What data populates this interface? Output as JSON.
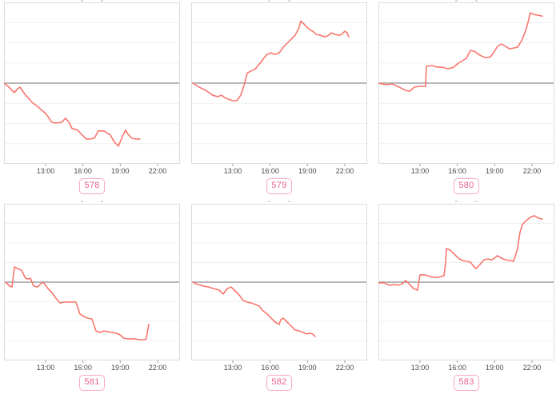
{
  "page": {
    "background": "#ffffff",
    "description_note": "grid of six small time-series line charts, each with a pink numbered tag below"
  },
  "style": {
    "line_color": "#f8766d",
    "zero_line_color": "#a2a2a2",
    "grid_color": "#f0f0f0",
    "border_color": "#dcdcdc",
    "tick_color": "#999999",
    "tick_label_color": "#4a4a4a",
    "badge_border_color": "#f7a9c3",
    "badge_text_color": "#e9618f"
  },
  "axis": {
    "x_domain_hours": [
      9.66,
      23.8
    ],
    "x_ticks": [
      {
        "hour": 13,
        "label": "13:00"
      },
      {
        "hour": 16,
        "label": "16:00"
      },
      {
        "hour": 19,
        "label": "19:00"
      },
      {
        "hour": 22,
        "label": "22:00"
      }
    ],
    "y_domain_units": [
      -4,
      4
    ],
    "y_gridline_step": 1,
    "y_zero_reference_line": true,
    "y_tick_labels_visible": false
  },
  "chart_data": [
    {
      "type": "line",
      "label": "578",
      "trend": "down",
      "points": [
        [
          9.66,
          0
        ],
        [
          9.98,
          -0.16
        ],
        [
          10.5,
          -0.47
        ],
        [
          10.75,
          -0.28
        ],
        [
          10.94,
          -0.2
        ],
        [
          11.39,
          -0.59
        ],
        [
          11.91,
          -0.95
        ],
        [
          12.42,
          -1.19
        ],
        [
          13.06,
          -1.54
        ],
        [
          13.51,
          -1.94
        ],
        [
          13.83,
          -1.98
        ],
        [
          14.28,
          -1.94
        ],
        [
          14.61,
          -1.74
        ],
        [
          14.93,
          -1.98
        ],
        [
          15.12,
          -2.25
        ],
        [
          15.57,
          -2.33
        ],
        [
          15.95,
          -2.57
        ],
        [
          16.28,
          -2.77
        ],
        [
          16.6,
          -2.77
        ],
        [
          16.92,
          -2.73
        ],
        [
          17.24,
          -2.37
        ],
        [
          17.69,
          -2.37
        ],
        [
          18.2,
          -2.57
        ],
        [
          18.52,
          -2.92
        ],
        [
          18.85,
          -3.12
        ],
        [
          19.17,
          -2.65
        ],
        [
          19.42,
          -2.33
        ],
        [
          19.62,
          -2.53
        ],
        [
          19.94,
          -2.73
        ],
        [
          20.26,
          -2.77
        ],
        [
          20.58,
          -2.77
        ]
      ]
    },
    {
      "type": "line",
      "label": "579",
      "trend": "up",
      "points": [
        [
          9.79,
          0
        ],
        [
          10.3,
          -0.2
        ],
        [
          10.94,
          -0.4
        ],
        [
          11.39,
          -0.6
        ],
        [
          11.78,
          -0.67
        ],
        [
          12.1,
          -0.6
        ],
        [
          12.42,
          -0.75
        ],
        [
          13.0,
          -0.87
        ],
        [
          13.32,
          -0.87
        ],
        [
          13.64,
          -0.6
        ],
        [
          13.96,
          0
        ],
        [
          14.16,
          0.5
        ],
        [
          14.48,
          0.6
        ],
        [
          14.8,
          0.7
        ],
        [
          15.25,
          1.03
        ],
        [
          15.57,
          1.3
        ],
        [
          15.76,
          1.42
        ],
        [
          16.08,
          1.5
        ],
        [
          16.4,
          1.42
        ],
        [
          16.73,
          1.5
        ],
        [
          17.05,
          1.78
        ],
        [
          17.37,
          1.98
        ],
        [
          17.69,
          2.17
        ],
        [
          18.01,
          2.37
        ],
        [
          18.33,
          2.77
        ],
        [
          18.46,
          3.08
        ],
        [
          18.78,
          2.89
        ],
        [
          19.1,
          2.69
        ],
        [
          19.42,
          2.57
        ],
        [
          19.74,
          2.41
        ],
        [
          20.07,
          2.37
        ],
        [
          20.39,
          2.29
        ],
        [
          20.71,
          2.37
        ],
        [
          20.9,
          2.49
        ],
        [
          21.22,
          2.41
        ],
        [
          21.54,
          2.37
        ],
        [
          21.74,
          2.41
        ],
        [
          22.0,
          2.57
        ],
        [
          22.19,
          2.49
        ],
        [
          22.31,
          2.29
        ]
      ]
    },
    {
      "type": "line",
      "label": "580",
      "trend": "up",
      "points": [
        [
          9.66,
          0
        ],
        [
          10.3,
          -0.08
        ],
        [
          10.75,
          -0.04
        ],
        [
          11.2,
          -0.16
        ],
        [
          11.84,
          -0.36
        ],
        [
          12.17,
          -0.4
        ],
        [
          12.55,
          -0.2
        ],
        [
          13.0,
          -0.16
        ],
        [
          13.45,
          -0.16
        ],
        [
          13.51,
          0.83
        ],
        [
          13.96,
          0.87
        ],
        [
          14.41,
          0.79
        ],
        [
          14.8,
          0.79
        ],
        [
          15.25,
          0.71
        ],
        [
          15.7,
          0.79
        ],
        [
          16.08,
          0.99
        ],
        [
          16.4,
          1.11
        ],
        [
          16.73,
          1.23
        ],
        [
          17.05,
          1.62
        ],
        [
          17.37,
          1.58
        ],
        [
          17.82,
          1.38
        ],
        [
          18.27,
          1.26
        ],
        [
          18.65,
          1.3
        ],
        [
          18.91,
          1.5
        ],
        [
          19.23,
          1.82
        ],
        [
          19.55,
          1.94
        ],
        [
          19.87,
          1.82
        ],
        [
          20.19,
          1.7
        ],
        [
          20.52,
          1.74
        ],
        [
          20.84,
          1.78
        ],
        [
          21.16,
          2.09
        ],
        [
          21.48,
          2.57
        ],
        [
          21.67,
          3.0
        ],
        [
          21.86,
          3.48
        ],
        [
          22.19,
          3.4
        ],
        [
          22.51,
          3.36
        ],
        [
          22.83,
          3.32
        ]
      ]
    },
    {
      "type": "line",
      "label": "581",
      "trend": "down",
      "points": [
        [
          9.79,
          0
        ],
        [
          10.11,
          -0.2
        ],
        [
          10.3,
          -0.25
        ],
        [
          10.5,
          0.78
        ],
        [
          10.75,
          0.69
        ],
        [
          11.07,
          0.61
        ],
        [
          11.39,
          0.2
        ],
        [
          11.58,
          0.16
        ],
        [
          11.78,
          0.2
        ],
        [
          12.04,
          -0.2
        ],
        [
          12.36,
          -0.25
        ],
        [
          12.68,
          -0.04
        ],
        [
          12.87,
          -0.04
        ],
        [
          13.19,
          -0.33
        ],
        [
          13.51,
          -0.53
        ],
        [
          13.83,
          -0.82
        ],
        [
          14.16,
          -1.06
        ],
        [
          14.48,
          -1.02
        ],
        [
          15.12,
          -1.02
        ],
        [
          15.44,
          -1.02
        ],
        [
          15.76,
          -1.63
        ],
        [
          16.08,
          -1.76
        ],
        [
          16.4,
          -1.84
        ],
        [
          16.73,
          -1.88
        ],
        [
          17.05,
          -2.49
        ],
        [
          17.37,
          -2.57
        ],
        [
          17.69,
          -2.49
        ],
        [
          18.01,
          -2.53
        ],
        [
          18.33,
          -2.57
        ],
        [
          18.65,
          -2.61
        ],
        [
          18.97,
          -2.69
        ],
        [
          19.29,
          -2.86
        ],
        [
          19.62,
          -2.9
        ],
        [
          20.26,
          -2.9
        ],
        [
          20.58,
          -2.94
        ],
        [
          20.9,
          -2.94
        ],
        [
          21.09,
          -2.9
        ],
        [
          21.29,
          -2.16
        ]
      ]
    },
    {
      "type": "line",
      "label": "582",
      "trend": "down",
      "points": [
        [
          9.79,
          0
        ],
        [
          10.17,
          -0.12
        ],
        [
          10.62,
          -0.2
        ],
        [
          11.07,
          -0.25
        ],
        [
          11.46,
          -0.33
        ],
        [
          11.91,
          -0.41
        ],
        [
          12.23,
          -0.61
        ],
        [
          12.55,
          -0.33
        ],
        [
          12.87,
          -0.25
        ],
        [
          13.19,
          -0.45
        ],
        [
          13.51,
          -0.65
        ],
        [
          13.83,
          -0.94
        ],
        [
          14.16,
          -1.02
        ],
        [
          14.48,
          -1.06
        ],
        [
          14.8,
          -1.14
        ],
        [
          15.12,
          -1.22
        ],
        [
          15.44,
          -1.47
        ],
        [
          15.76,
          -1.63
        ],
        [
          16.08,
          -1.84
        ],
        [
          16.4,
          -2.04
        ],
        [
          16.73,
          -2.16
        ],
        [
          16.85,
          -1.92
        ],
        [
          17.05,
          -1.84
        ],
        [
          17.37,
          -2.04
        ],
        [
          17.69,
          -2.24
        ],
        [
          18.01,
          -2.45
        ],
        [
          18.33,
          -2.49
        ],
        [
          18.65,
          -2.57
        ],
        [
          18.97,
          -2.65
        ],
        [
          19.17,
          -2.61
        ],
        [
          19.42,
          -2.65
        ],
        [
          19.62,
          -2.78
        ]
      ]
    },
    {
      "type": "line",
      "label": "583",
      "trend": "up",
      "points": [
        [
          9.66,
          -0.04
        ],
        [
          10.11,
          -0.04
        ],
        [
          10.56,
          -0.16
        ],
        [
          10.94,
          -0.12
        ],
        [
          11.27,
          -0.16
        ],
        [
          11.59,
          -0.08
        ],
        [
          11.84,
          0.08
        ],
        [
          12.17,
          -0.12
        ],
        [
          12.49,
          -0.33
        ],
        [
          12.81,
          -0.41
        ],
        [
          13.0,
          0.37
        ],
        [
          13.32,
          0.37
        ],
        [
          13.64,
          0.33
        ],
        [
          14.09,
          0.24
        ],
        [
          14.41,
          0.24
        ],
        [
          14.73,
          0.29
        ],
        [
          14.93,
          0.33
        ],
        [
          15.06,
          1.02
        ],
        [
          15.12,
          1.71
        ],
        [
          15.44,
          1.63
        ],
        [
          15.76,
          1.43
        ],
        [
          16.08,
          1.22
        ],
        [
          16.4,
          1.1
        ],
        [
          16.73,
          1.06
        ],
        [
          17.05,
          1.02
        ],
        [
          17.3,
          0.82
        ],
        [
          17.5,
          0.69
        ],
        [
          17.82,
          0.9
        ],
        [
          18.14,
          1.14
        ],
        [
          18.46,
          1.18
        ],
        [
          18.78,
          1.14
        ],
        [
          18.97,
          1.22
        ],
        [
          19.23,
          1.35
        ],
        [
          19.55,
          1.22
        ],
        [
          19.87,
          1.14
        ],
        [
          20.19,
          1.1
        ],
        [
          20.52,
          1.06
        ],
        [
          20.84,
          1.71
        ],
        [
          21.03,
          2.53
        ],
        [
          21.22,
          2.94
        ],
        [
          21.54,
          3.14
        ],
        [
          21.86,
          3.31
        ],
        [
          22.19,
          3.39
        ],
        [
          22.51,
          3.27
        ],
        [
          22.83,
          3.22
        ]
      ]
    }
  ]
}
